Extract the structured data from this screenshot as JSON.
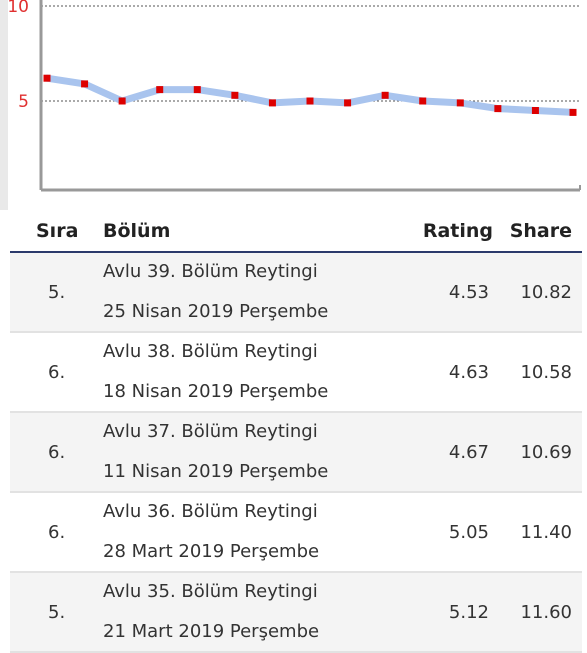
{
  "chart_data": {
    "type": "line",
    "y_ticks": [
      "10",
      "5"
    ],
    "ylim": [
      0,
      10
    ],
    "grid": "dotted at 5 and 10",
    "series": [
      {
        "values": [
          6.2,
          5.9,
          5.0,
          5.6,
          5.6,
          5.3,
          4.9,
          5.0,
          4.9,
          5.3,
          5.0,
          4.9,
          4.6,
          4.5,
          4.4
        ]
      }
    ],
    "line_color": "#a9c4ee",
    "marker_color": "#dd0000",
    "tick_color": "#e03030"
  },
  "table": {
    "headers": {
      "sira": "Sıra",
      "bolum": "Bölüm",
      "rating": "Rating",
      "share": "Share"
    },
    "rows": [
      {
        "sira": "5.",
        "title": "Avlu 39. Bölüm Reytingi",
        "date": "25 Nisan 2019 Perşembe",
        "rating": "4.53",
        "share": "10.82"
      },
      {
        "sira": "6.",
        "title": "Avlu 38. Bölüm Reytingi",
        "date": "18 Nisan 2019 Perşembe",
        "rating": "4.63",
        "share": "10.58"
      },
      {
        "sira": "6.",
        "title": "Avlu 37. Bölüm Reytingi",
        "date": "11 Nisan 2019 Perşembe",
        "rating": "4.67",
        "share": "10.69"
      },
      {
        "sira": "6.",
        "title": "Avlu 36. Bölüm Reytingi",
        "date": "28 Mart 2019 Perşembe",
        "rating": "5.05",
        "share": "11.40"
      },
      {
        "sira": "5.",
        "title": "Avlu 35. Bölüm Reytingi",
        "date": "21 Mart 2019 Perşembe",
        "rating": "5.12",
        "share": "11.60"
      }
    ]
  }
}
